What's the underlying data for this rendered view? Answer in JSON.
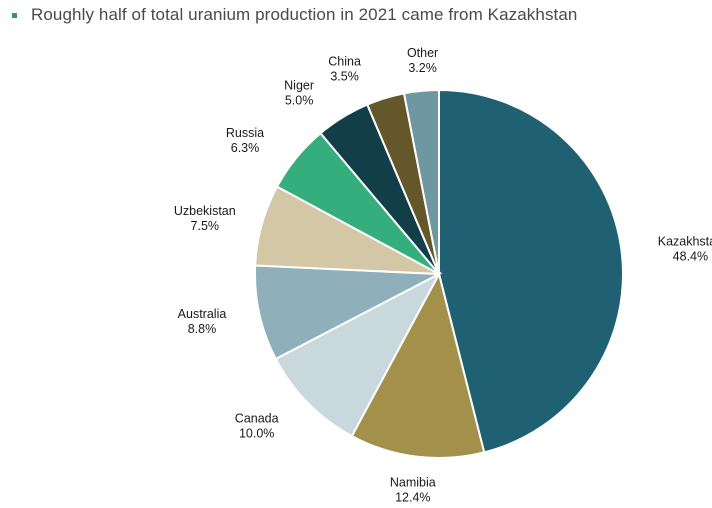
{
  "header": {
    "title": "Roughly half of total uranium production in 2021 came from Kazakhstan"
  },
  "chart_data": {
    "type": "pie",
    "title": "Roughly half of total uranium production in 2021 came from Kazakhstan",
    "categories": [
      "Kazakhstan",
      "Namibia",
      "Canada",
      "Australia",
      "Uzbekistan",
      "Russia",
      "Niger",
      "China",
      "Other"
    ],
    "values": [
      48.4,
      12.4,
      10.0,
      8.8,
      7.5,
      6.3,
      5.0,
      3.5,
      3.2
    ],
    "labels": [
      "48.4%",
      "12.4%",
      "10.0%",
      "8.8%",
      "7.5%",
      "6.3%",
      "5.0%",
      "3.5%",
      "3.2%"
    ],
    "colors": [
      "#1f6172",
      "#a3904a",
      "#c8d8dc",
      "#8fb0ba",
      "#d3c7a6",
      "#33ae7c",
      "#123e48",
      "#64582b",
      "#6f97a2"
    ],
    "start_angle_deg": 0,
    "direction": "clockwise",
    "data_labels": "outside"
  }
}
